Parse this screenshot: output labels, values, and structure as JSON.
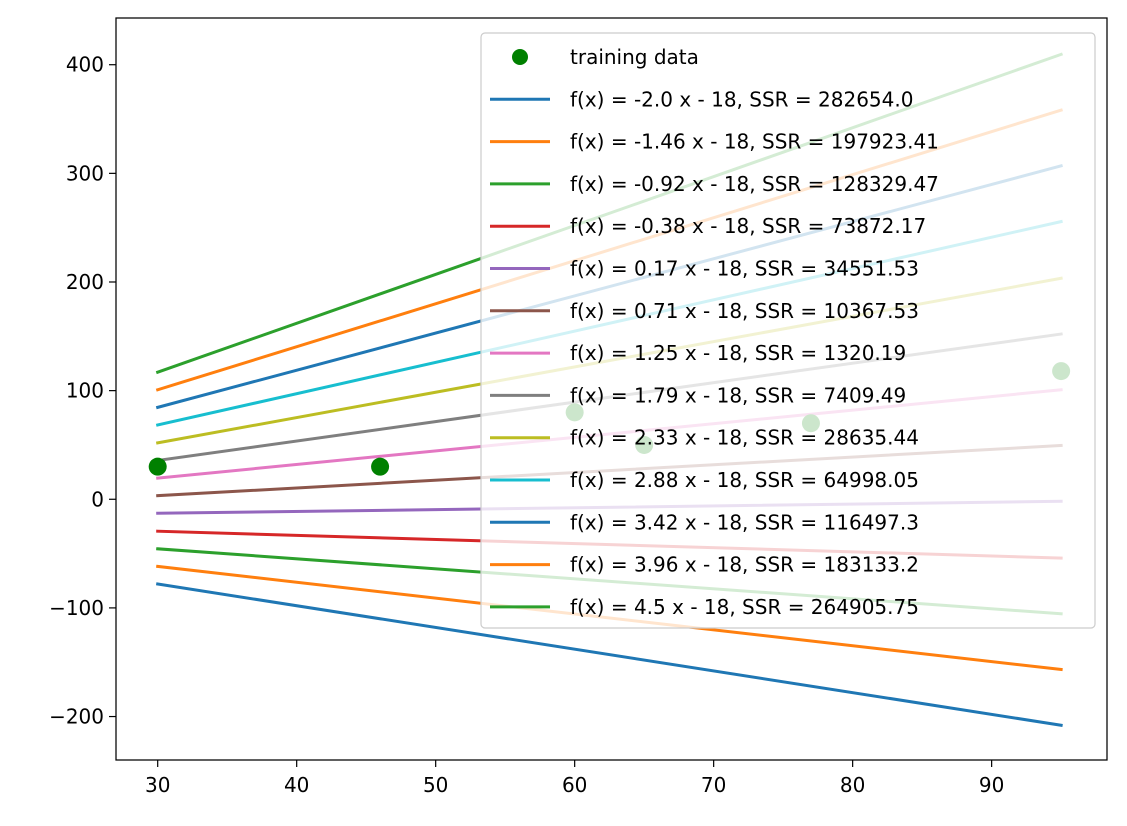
{
  "chart_data": {
    "type": "line",
    "title": "",
    "xlabel": "",
    "ylabel": "",
    "xlim": [
      27,
      98.3
    ],
    "ylim": [
      -240,
      443
    ],
    "x_ticks": [
      30,
      40,
      50,
      60,
      70,
      80,
      90
    ],
    "y_ticks": [
      -200,
      -100,
      0,
      100,
      200,
      300,
      400
    ],
    "tick_labels": {
      "x": [
        "30",
        "40",
        "50",
        "60",
        "70",
        "80",
        "90"
      ],
      "y": [
        "−200",
        "−100",
        "0",
        "100",
        "200",
        "300",
        "400"
      ]
    },
    "x_range": [
      30,
      95
    ],
    "training_data": {
      "name": "training data",
      "color": "#008000",
      "x": [
        30,
        46,
        60,
        65,
        77,
        95
      ],
      "y": [
        30,
        30,
        80,
        50,
        70,
        118
      ]
    },
    "series": [
      {
        "name": "f(x) = -2.0 x - 18, SSR = 282654.0",
        "slope": -2.0,
        "intercept": -18,
        "color": "#1f77b4"
      },
      {
        "name": "f(x) = -1.46 x - 18, SSR = 197923.41",
        "slope": -1.46,
        "intercept": -18,
        "color": "#ff7f0e"
      },
      {
        "name": "f(x) = -0.92 x - 18, SSR = 128329.47",
        "slope": -0.92,
        "intercept": -18,
        "color": "#2ca02c"
      },
      {
        "name": "f(x) = -0.38 x - 18, SSR = 73872.17",
        "slope": -0.38,
        "intercept": -18,
        "color": "#d62728"
      },
      {
        "name": "f(x) = 0.17 x - 18, SSR = 34551.53",
        "slope": 0.17,
        "intercept": -18,
        "color": "#9467bd"
      },
      {
        "name": "f(x) = 0.71 x - 18, SSR = 10367.53",
        "slope": 0.71,
        "intercept": -18,
        "color": "#8c564b"
      },
      {
        "name": "f(x) = 1.25 x - 18, SSR = 1320.19",
        "slope": 1.25,
        "intercept": -18,
        "color": "#e377c2"
      },
      {
        "name": "f(x) = 1.79 x - 18, SSR = 7409.49",
        "slope": 1.79,
        "intercept": -18,
        "color": "#7f7f7f"
      },
      {
        "name": "f(x) = 2.33 x - 18, SSR = 28635.44",
        "slope": 2.33,
        "intercept": -18,
        "color": "#bcbd22"
      },
      {
        "name": "f(x) = 2.88 x - 18, SSR = 64998.05",
        "slope": 2.88,
        "intercept": -18,
        "color": "#17becf"
      },
      {
        "name": "f(x) = 3.42 x - 18, SSR = 116497.3",
        "slope": 3.42,
        "intercept": -18,
        "color": "#1f77b4"
      },
      {
        "name": "f(x) = 3.96 x - 18, SSR = 183133.2",
        "slope": 3.96,
        "intercept": -18,
        "color": "#ff7f0e"
      },
      {
        "name": "f(x) = 4.5 x - 18, SSR = 264905.75",
        "slope": 4.5,
        "intercept": -18,
        "color": "#2ca02c"
      }
    ],
    "lines_drawn": [
      {
        "x": [
          30,
          95
        ],
        "y": [
          -78,
          -208
        ]
      },
      {
        "x": [
          30,
          95
        ],
        "y": [
          -61.8,
          -156.7
        ]
      },
      {
        "x": [
          30,
          95
        ],
        "y": [
          -45.6,
          -105.4
        ]
      },
      {
        "x": [
          30,
          95
        ],
        "y": [
          -29.4,
          -54.1
        ]
      },
      {
        "x": [
          30,
          95
        ],
        "y": [
          -12.9,
          -1.9
        ]
      },
      {
        "x": [
          30,
          95
        ],
        "y": [
          3.3,
          49.5
        ]
      },
      {
        "x": [
          30,
          95
        ],
        "y": [
          19.5,
          100.8
        ]
      },
      {
        "x": [
          30,
          95
        ],
        "y": [
          35.7,
          152.1
        ]
      },
      {
        "x": [
          30,
          95
        ],
        "y": [
          51.9,
          203.4
        ]
      },
      {
        "x": [
          30,
          95
        ],
        "y": [
          68.4,
          255.6
        ]
      },
      {
        "x": [
          30,
          95
        ],
        "y": [
          84.6,
          306.9
        ]
      },
      {
        "x": [
          30,
          95
        ],
        "y": [
          100.8,
          358.2
        ]
      },
      {
        "x": [
          30,
          95
        ],
        "y": [
          117,
          409.5
        ]
      }
    ],
    "grid": false,
    "legend_position": "top-right"
  }
}
